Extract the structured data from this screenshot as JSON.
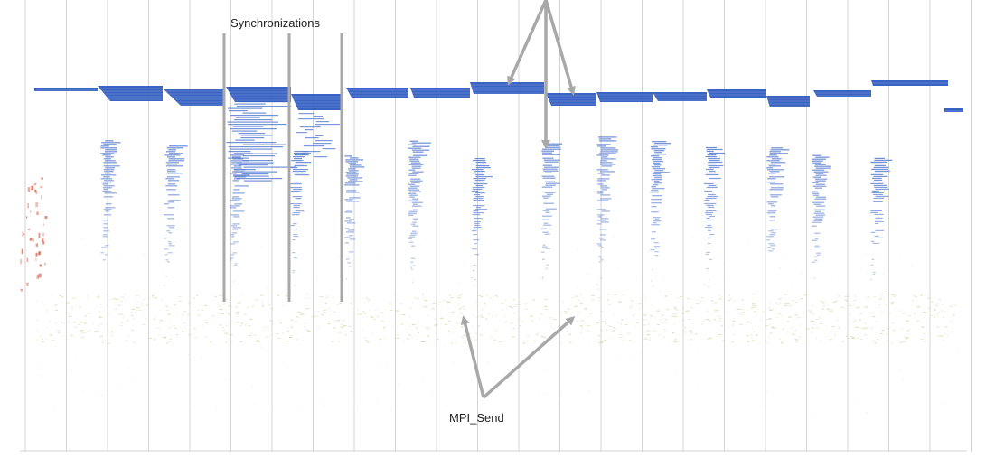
{
  "annotations": {
    "synchronizations": "Synchronizations",
    "mpi_send": "MPI_Send"
  },
  "colors": {
    "background": "#ffffff",
    "gridline": "#d4d4d4",
    "block": "#2f5cc0",
    "block_light": "#5b7fd0",
    "annotation_arrow": "#a8a8a8",
    "send_dots": "#c8d79a",
    "left_edge": "#d8604a"
  }
}
